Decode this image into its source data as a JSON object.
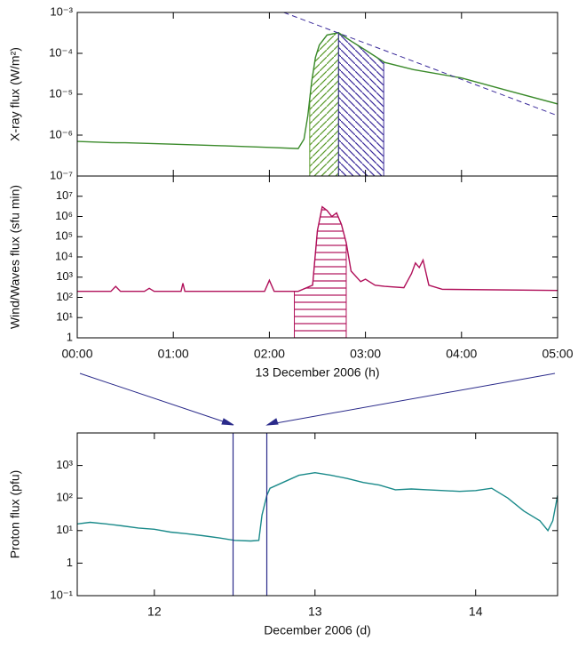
{
  "chart_data": [
    {
      "type": "line",
      "ylabel": "X-ray flux (W/m²)",
      "log_scale": true,
      "color": "#3a8a2a",
      "xlim": [
        0,
        5
      ],
      "xticks": [
        0,
        1,
        2,
        3,
        4,
        5
      ],
      "ylim": [
        1e-07,
        0.001
      ],
      "yticks": [
        {
          "value": 1e-07,
          "label": "10⁻⁷"
        },
        {
          "value": 1e-06,
          "label": "10⁻⁶"
        },
        {
          "value": 1e-05,
          "label": "10⁻⁵"
        },
        {
          "value": 0.0001,
          "label": "10⁻⁴"
        },
        {
          "value": 0.001,
          "label": "10⁻³"
        }
      ],
      "x": [
        0,
        0.4,
        0.5,
        1.0,
        1.5,
        2.0,
        2.3,
        2.36,
        2.4,
        2.44,
        2.48,
        2.52,
        2.6,
        2.72,
        2.85,
        3.0,
        3.2,
        3.5,
        4.0,
        4.5,
        5.0
      ],
      "values": [
        7e-07,
        6.5e-07,
        6.5e-07,
        6e-07,
        5.5e-07,
        5e-07,
        4.7e-07,
        8e-07,
        3e-06,
        2e-05,
        8e-05,
        0.00016,
        0.00028,
        0.00032,
        0.0002,
        0.00012,
        6e-05,
        4e-05,
        2.5e-05,
        1.2e-05,
        5.8e-06
      ],
      "shaded_regions": [
        {
          "xmin": 2.42,
          "xmax": 2.72,
          "color": "#5a9a2a",
          "hatch": "/"
        },
        {
          "xmin": 2.72,
          "xmax": 3.19,
          "color": "#3a2a9a",
          "hatch": "\\"
        }
      ],
      "fit_line": {
        "x": [
          2.15,
          5
        ],
        "values": [
          0.001,
          3e-06
        ],
        "color": "#3a2a9a"
      }
    },
    {
      "type": "line",
      "ylabel": "Wind/Waves flux (sfu min)",
      "xlabel": "13 December 2006 (h)",
      "log_scale": true,
      "color": "#b0105a",
      "xlim": [
        0,
        5
      ],
      "xticks": [
        {
          "value": 0,
          "label": "00:00"
        },
        {
          "value": 1,
          "label": "01:00"
        },
        {
          "value": 2,
          "label": "02:00"
        },
        {
          "value": 3,
          "label": "03:00"
        },
        {
          "value": 4,
          "label": "04:00"
        },
        {
          "value": 5,
          "label": "05:00"
        }
      ],
      "ylim": [
        1,
        100000000
      ],
      "yticks": [
        1,
        {
          "value": 10,
          "label": "10¹"
        },
        {
          "value": 100,
          "label": "10²"
        },
        {
          "value": 1000,
          "label": "10³"
        },
        {
          "value": 10000,
          "label": "10⁴"
        },
        {
          "value": 100000,
          "label": "10⁵"
        },
        {
          "value": 1000000,
          "label": "10⁶"
        },
        {
          "value": 10000000,
          "label": "10⁷"
        }
      ],
      "x": [
        0,
        0.35,
        0.4,
        0.45,
        0.7,
        0.75,
        0.8,
        1.08,
        1.1,
        1.12,
        1.95,
        2.0,
        2.05,
        2.3,
        2.45,
        2.5,
        2.55,
        2.6,
        2.65,
        2.7,
        2.75,
        2.8,
        2.85,
        2.95,
        3.0,
        3.1,
        3.2,
        3.4,
        3.48,
        3.52,
        3.56,
        3.6,
        3.66,
        3.8,
        5.0
      ],
      "values": [
        200,
        200,
        350,
        200,
        200,
        280,
        200,
        200,
        500,
        200,
        200,
        700,
        200,
        200,
        400,
        200000,
        3000000,
        2000000,
        1000000,
        1500000,
        400000,
        50000,
        2000,
        600,
        800,
        400,
        350,
        300,
        1500,
        5000,
        3000,
        7000,
        400,
        250,
        220
      ],
      "shaded_regions": [
        {
          "xmin": 2.26,
          "xmax": 2.8,
          "color": "#b0105a",
          "hatch": "-"
        }
      ]
    },
    {
      "type": "line",
      "ylabel": "Proton flux (pfu)",
      "xlabel": "December 2006 (d)",
      "log_scale": true,
      "color": "#1a8a8a",
      "xlim": [
        11.52,
        14.51
      ],
      "xticks": [
        12,
        13,
        14
      ],
      "ylim": [
        0.1,
        10000
      ],
      "yticks": [
        {
          "value": 0.1,
          "label": "10⁻¹"
        },
        1,
        {
          "value": 10,
          "label": "10¹"
        },
        {
          "value": 100,
          "label": "10²"
        },
        {
          "value": 1000,
          "label": "10³"
        }
      ],
      "x": [
        11.52,
        11.6,
        11.7,
        11.8,
        11.9,
        12.0,
        12.1,
        12.2,
        12.3,
        12.4,
        12.5,
        12.6,
        12.65,
        12.67,
        12.7,
        12.72,
        12.8,
        12.9,
        13.0,
        13.1,
        13.2,
        13.3,
        13.4,
        13.5,
        13.6,
        13.7,
        13.8,
        13.9,
        14.0,
        14.1,
        14.2,
        14.3,
        14.4,
        14.45,
        14.48,
        14.51
      ],
      "values": [
        16,
        18,
        16,
        14,
        12,
        11,
        9,
        8,
        7,
        6,
        5,
        4.8,
        5,
        30,
        120,
        200,
        300,
        500,
        600,
        500,
        400,
        300,
        250,
        180,
        190,
        180,
        170,
        160,
        170,
        200,
        100,
        40,
        20,
        10,
        20,
        120
      ],
      "vlines": {
        "x": [
          12.49,
          12.7
        ],
        "color": "#2a2a8a"
      }
    }
  ]
}
